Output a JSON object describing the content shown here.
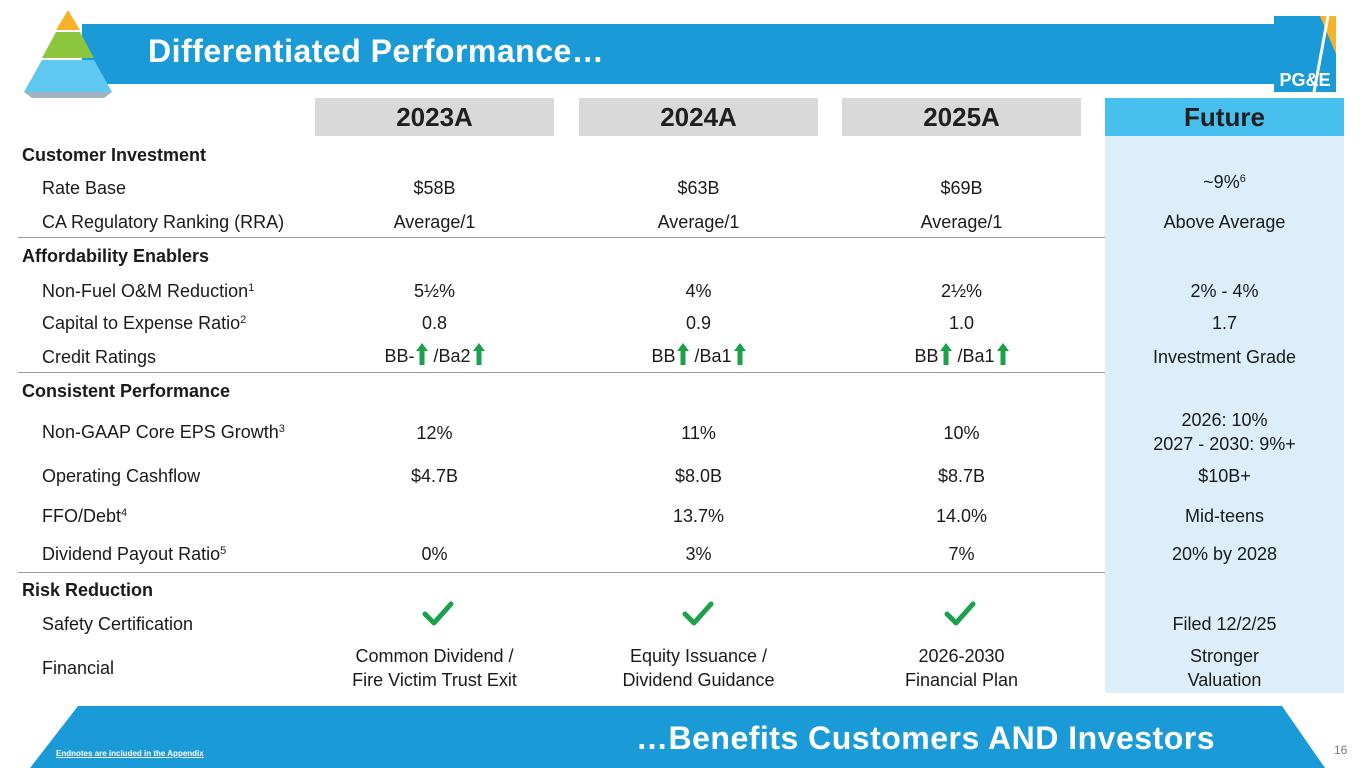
{
  "title": "Differentiated Performance…",
  "brand": {
    "logo_text": "PG&E",
    "accent": "#1a9ad6",
    "future_bg": "#47c0f0",
    "header_bg": "#d9d9d9",
    "arrow_color": "#1aa14a"
  },
  "columns": [
    "2023A",
    "2024A",
    "2025A",
    "Future"
  ],
  "sections": {
    "customer_investment": "Customer Investment",
    "affordability": "Affordability Enablers",
    "consistent": "Consistent Performance",
    "risk": "Risk Reduction"
  },
  "rows": {
    "rate_base": {
      "label": "Rate Base",
      "v2023": "$58B",
      "v2024": "$63B",
      "v2025": "$69B",
      "future": "~9%",
      "future_sup": "6"
    },
    "rra": {
      "label": "CA Regulatory Ranking (RRA)",
      "v2023": "Average/1",
      "v2024": "Average/1",
      "v2025": "Average/1",
      "future": "Above Average"
    },
    "om": {
      "label": "Non-Fuel O&M Reduction",
      "sup": "1",
      "v2023": "5½%",
      "v2024": "4%",
      "v2025": "2½%",
      "future": "2% - 4%"
    },
    "capex": {
      "label": "Capital to Expense Ratio",
      "sup": "2",
      "v2023": "0.8",
      "v2024": "0.9",
      "v2025": "1.0",
      "future": "1.7"
    },
    "credit": {
      "label": "Credit Ratings",
      "v2023_a": "BB-",
      "v2023_b": "/Ba2",
      "v2024_a": "BB",
      "v2024_b": "/Ba1",
      "v2025_a": "BB",
      "v2025_b": "/Ba1",
      "future": "Investment Grade"
    },
    "eps": {
      "label": "Non-GAAP Core EPS Growth",
      "sup": "3",
      "v2023": "12%",
      "v2024": "11%",
      "v2025": "10%",
      "future_1": "2026: 10%",
      "future_2": "2027 - 2030: 9%+"
    },
    "cashflow": {
      "label": "Operating Cashflow",
      "v2023": "$4.7B",
      "v2024": "$8.0B",
      "v2025": "$8.7B",
      "future": "$10B+"
    },
    "ffo": {
      "label": "FFO/Debt",
      "sup": "4",
      "v2024": "13.7%",
      "v2025": "14.0%",
      "future": "Mid-teens"
    },
    "dividend": {
      "label": "Dividend Payout Ratio",
      "sup": "5",
      "v2023": "0%",
      "v2024": "3%",
      "v2025": "7%",
      "future": "20% by 2028"
    },
    "safety": {
      "label": "Safety Certification",
      "future": "Filed 12/2/25"
    },
    "financial": {
      "label": "Financial",
      "v2023_1": "Common Dividend /",
      "v2023_2": "Fire Victim Trust Exit",
      "v2024_1": "Equity Issuance /",
      "v2024_2": "Dividend Guidance",
      "v2025_1": "2026-2030",
      "v2025_2": "Financial Plan",
      "future_1": "Stronger",
      "future_2": "Valuation"
    }
  },
  "footer": {
    "tagline": "…Benefits Customers AND Investors",
    "endnote": "Endnotes are included in the Appendix",
    "page": "16"
  }
}
